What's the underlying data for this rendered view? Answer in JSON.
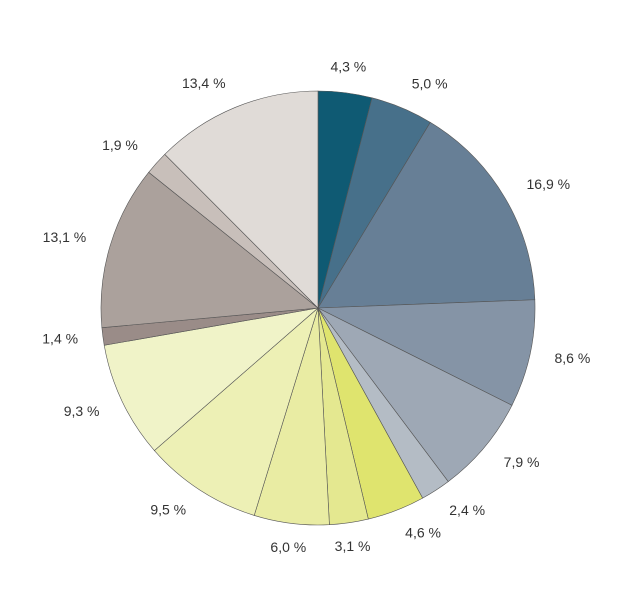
{
  "chart_data": {
    "type": "pie",
    "categories": [
      null,
      null,
      null,
      null,
      null,
      null,
      null,
      null,
      null,
      null,
      null,
      null,
      null,
      null,
      null
    ],
    "values": [
      4.3,
      5.0,
      16.9,
      8.6,
      7.9,
      2.4,
      4.6,
      3.1,
      6.0,
      9.5,
      9.3,
      1.4,
      13.1,
      1.9,
      13.4
    ],
    "value_labels": [
      "4,3 %",
      "5,0 %",
      "16,9 %",
      "8,6 %",
      "7,9 %",
      "2,4 %",
      "4,6 %",
      "3,1 %",
      "6,0 %",
      "9,5 %",
      "9,3 %",
      "1,4 %",
      "13,1 %",
      "1,9 %",
      "13,4 %"
    ],
    "colors": [
      "#0f5a73",
      "#47708a",
      "#677f96",
      "#8594a6",
      "#9ea8b5",
      "#b4bcc5",
      "#dfe46e",
      "#e4e890",
      "#e9eca3",
      "#edf0b5",
      "#f0f3c8",
      "#9a8c88",
      "#aba19c",
      "#c8bfba",
      "#e0dbd7"
    ]
  }
}
